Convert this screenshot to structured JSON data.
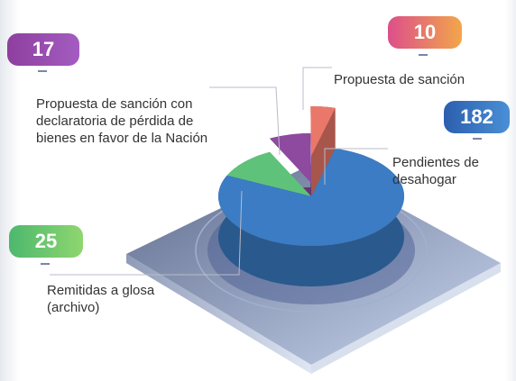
{
  "chart_data": {
    "type": "pie",
    "categories": [
      "Pendientes de desahogar",
      "Remitidas a glosa (archivo)",
      "Propuesta de sanción con declaratoria de pérdida de bienes en favor de la Nación",
      "Propuesta de sanción"
    ],
    "values": [
      182,
      25,
      17,
      10
    ],
    "colors": [
      "#3b7cc4",
      "#5fc27a",
      "#8e4a9e",
      "#e9786a"
    ]
  }
}
